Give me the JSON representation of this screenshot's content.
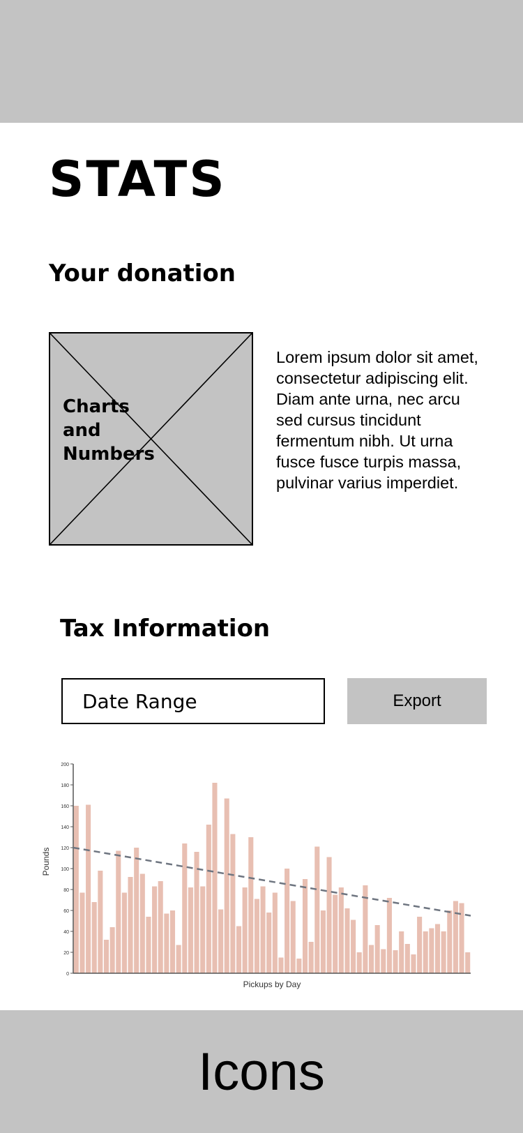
{
  "header": {
    "title": "STATS"
  },
  "donation": {
    "title": "Your donation",
    "placeholder_label": "Charts\nand\nNumbers",
    "description": "Lorem ipsum dolor sit amet, consectetur adipiscing elit. Diam ante urna, nec arcu sed cursus tincidunt fermentum nibh. Ut urna fusce fusce turpis massa, pulvinar varius imperdiet."
  },
  "tax": {
    "title": "Tax Information",
    "date_range_label": "Date Range",
    "export_label": "Export"
  },
  "chart_data": {
    "type": "bar",
    "xlabel": "Pickups by Day",
    "ylabel": "Pounds",
    "ylim": [
      0,
      200
    ],
    "yticks": [
      0,
      20,
      40,
      60,
      80,
      100,
      120,
      140,
      160,
      180,
      200
    ],
    "values": [
      160,
      77,
      161,
      68,
      98,
      32,
      44,
      117,
      77,
      92,
      120,
      95,
      54,
      83,
      88,
      57,
      60,
      27,
      124,
      82,
      116,
      83,
      142,
      182,
      61,
      167,
      133,
      45,
      82,
      130,
      71,
      83,
      58,
      77,
      15,
      100,
      69,
      14,
      90,
      30,
      121,
      60,
      111,
      75,
      82,
      62,
      51,
      20,
      84,
      27,
      46,
      23,
      72,
      22,
      40,
      28,
      18,
      54,
      40,
      43,
      47,
      40,
      60,
      69,
      67,
      20
    ],
    "trend": {
      "start": 120,
      "end": 55,
      "color": "#6e7580",
      "style": "dashed"
    },
    "bar_color": "#e8bfb2",
    "grid": false
  },
  "footer": {
    "label": "Icons"
  }
}
